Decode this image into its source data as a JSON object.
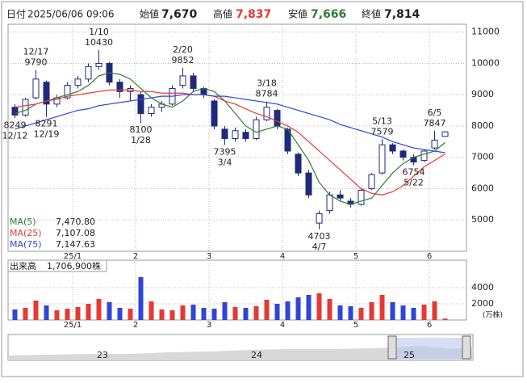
{
  "header": {
    "date_label": "日付",
    "datetime": "2025/06/06 09:06",
    "fields": [
      {
        "label": "始値",
        "value": "7,670"
      },
      {
        "label": "高値",
        "value": "7,837"
      },
      {
        "label": "安値",
        "value": "7,666"
      },
      {
        "label": "終値",
        "value": "7,814"
      }
    ]
  },
  "chart_data": [
    {
      "type": "candlestick",
      "categories": [
        null,
        null,
        null,
        null,
        null,
        null,
        "25/1",
        null,
        null,
        null,
        null,
        null,
        "2",
        null,
        null,
        null,
        null,
        null,
        null,
        "3",
        null,
        null,
        null,
        null,
        null,
        null,
        "4",
        null,
        null,
        null,
        null,
        null,
        null,
        "5",
        null,
        null,
        null,
        null,
        null,
        null,
        "6",
        null
      ],
      "open": [
        8600,
        8350,
        8900,
        9400,
        8700,
        8900,
        9300,
        9500,
        9900,
        10000,
        9400,
        9100,
        9000,
        8400,
        8600,
        8700,
        9300,
        9600,
        9200,
        8800,
        7900,
        7600,
        7800,
        7600,
        8200,
        8500,
        7900,
        7100,
        6500,
        4900,
        5300,
        5800,
        5600,
        5500,
        6000,
        6500,
        7400,
        7200,
        7000,
        6900,
        7300,
        7670
      ],
      "high": [
        8700,
        8900,
        9790,
        9450,
        9000,
        9400,
        9600,
        10000,
        10430,
        10050,
        9500,
        9300,
        9100,
        8700,
        8800,
        9300,
        9852,
        9700,
        9250,
        8850,
        8000,
        7950,
        7900,
        8300,
        8784,
        8550,
        7950,
        7150,
        6600,
        5300,
        5900,
        5950,
        5700,
        6000,
        6500,
        7579,
        7450,
        7250,
        7100,
        7250,
        7847,
        7837
      ],
      "low": [
        8249,
        8300,
        8850,
        8291,
        8600,
        8850,
        9200,
        9400,
        9800,
        9300,
        8900,
        8800,
        8100,
        8300,
        8450,
        8650,
        9200,
        9100,
        8900,
        7900,
        7395,
        7500,
        7500,
        7550,
        8150,
        7900,
        7100,
        6400,
        5700,
        4703,
        5200,
        5600,
        5400,
        5450,
        5950,
        6450,
        7100,
        6900,
        6754,
        6850,
        7250,
        7666
      ],
      "close": [
        8350,
        8850,
        9500,
        8700,
        8900,
        9300,
        9500,
        9900,
        10000,
        9400,
        9100,
        9200,
        8400,
        8600,
        8700,
        9200,
        9600,
        9200,
        9000,
        8000,
        7600,
        7850,
        7600,
        8200,
        8600,
        8000,
        7200,
        6500,
        5800,
        5200,
        5800,
        5700,
        5500,
        5950,
        6450,
        7400,
        7200,
        7000,
        6850,
        7200,
        7550,
        7814
      ],
      "up_color": "#ffffff",
      "down_color": "#1f2a7a",
      "series": [
        {
          "name": "MA(5)",
          "color": "#2e7d32",
          "value_label": "7,470.80",
          "values": [
            8400,
            8500,
            8700,
            8800,
            8900,
            9000,
            9100,
            9300,
            9600,
            9700,
            9650,
            9500,
            9200,
            8900,
            8700,
            8600,
            8800,
            9100,
            9200,
            9100,
            8800,
            8400,
            8000,
            7800,
            7900,
            8000,
            7900,
            7400,
            6900,
            6200,
            5800,
            5600,
            5500,
            5600,
            5700,
            6100,
            6500,
            6800,
            7000,
            7100,
            7200,
            7470.8
          ]
        },
        {
          "name": "MA(25)",
          "color": "#e53935",
          "value_label": "7,107.08",
          "values": [
            8600,
            8650,
            8700,
            8800,
            8850,
            8950,
            9000,
            9050,
            9100,
            9150,
            9150,
            9150,
            9100,
            9100,
            9050,
            9050,
            9050,
            9000,
            9000,
            8950,
            8800,
            8700,
            8550,
            8400,
            8300,
            8150,
            8000,
            7800,
            7500,
            7200,
            6900,
            6600,
            6300,
            6000,
            5850,
            5800,
            5900,
            6100,
            6400,
            6700,
            6900,
            7107.08
          ]
        },
        {
          "name": "MA(75)",
          "color": "#2f45d6",
          "value_label": "7,147.63",
          "values": [
            7900,
            8000,
            8100,
            8200,
            8300,
            8400,
            8500,
            8550,
            8650,
            8700,
            8750,
            8800,
            8850,
            8900,
            8950,
            8950,
            9000,
            9000,
            9000,
            8950,
            8950,
            8900,
            8850,
            8800,
            8750,
            8700,
            8600,
            8500,
            8400,
            8300,
            8200,
            8050,
            7950,
            7850,
            7750,
            7650,
            7500,
            7400,
            7300,
            7250,
            7200,
            7147.63
          ]
        }
      ],
      "annotations": [
        {
          "date": "12/12",
          "value": 8249
        },
        {
          "date": "12/17",
          "value": 9790
        },
        {
          "date": "12/19",
          "value": 8291
        },
        {
          "date": "1/10",
          "value": 10430
        },
        {
          "date": "1/28",
          "value": 8100
        },
        {
          "date": "2/20",
          "value": 9852
        },
        {
          "date": "3/4",
          "value": 7395
        },
        {
          "date": "3/18",
          "value": 8784
        },
        {
          "date": "4/7",
          "value": 4703
        },
        {
          "date": "5/13",
          "value": 7579
        },
        {
          "date": "5/22",
          "value": 6754
        },
        {
          "date": "6/5",
          "value": 7847
        }
      ],
      "ylim": [
        4000,
        11250
      ],
      "yticks": [
        5000,
        6000,
        7000,
        8000,
        9000,
        10000,
        11000
      ],
      "grid": true
    },
    {
      "type": "bar",
      "title": "出来高",
      "subtitle": "1,706,900株",
      "unit": "(万株)",
      "categories": [
        null,
        null,
        null,
        null,
        null,
        null,
        "25/1",
        null,
        null,
        null,
        null,
        null,
        "2",
        null,
        null,
        null,
        null,
        null,
        null,
        "3",
        null,
        null,
        null,
        null,
        null,
        null,
        "4",
        null,
        null,
        null,
        null,
        null,
        null,
        "5",
        null,
        null,
        null,
        null,
        null,
        null,
        "6",
        null
      ],
      "values": [
        1300,
        1500,
        2400,
        1800,
        1200,
        1400,
        1600,
        2000,
        2600,
        2200,
        1500,
        1400,
        5300,
        2300,
        1300,
        1200,
        1800,
        1900,
        1500,
        1400,
        2200,
        1600,
        1500,
        1700,
        2500,
        2000,
        2300,
        2800,
        3100,
        3300,
        2600,
        1800,
        1700,
        1500,
        2200,
        3100,
        2200,
        1800,
        1500,
        1900,
        2300,
        170.69
      ],
      "color": "#e53935",
      "down_color": "#2f45d6",
      "ylim": [
        0,
        7400
      ],
      "yticks": [
        2000,
        4000
      ],
      "grid": true
    }
  ],
  "navigator": {
    "labels": [
      "23",
      "24",
      "25"
    ]
  }
}
